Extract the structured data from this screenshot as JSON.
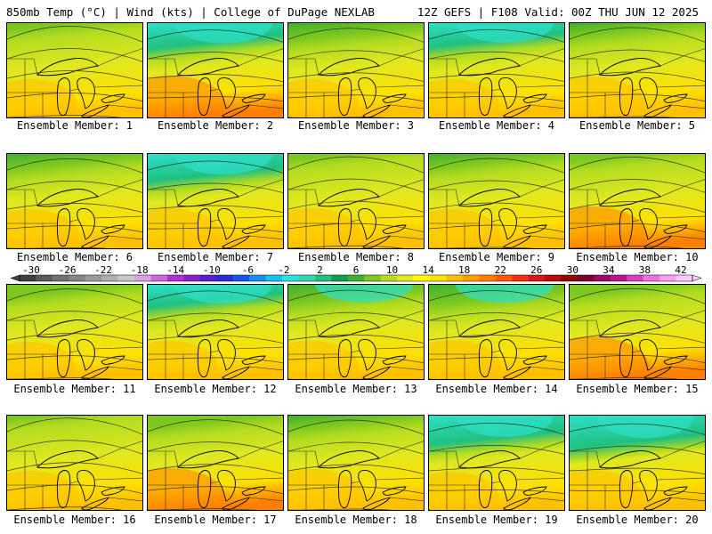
{
  "header": {
    "left": "850mb Temp (°C) | Wind (kts) | College of DuPage NEXLAB",
    "right": "12Z GEFS | F108 Valid: 00Z THU JUN 12 2025"
  },
  "member_label_prefix": "Ensemble Member: ",
  "members": [
    {
      "id": "1",
      "cold": 0.2,
      "warm": 0.35
    },
    {
      "id": "2",
      "cold": 0.75,
      "warm": 0.55
    },
    {
      "id": "3",
      "cold": 0.5,
      "warm": 0.35
    },
    {
      "id": "4",
      "cold": 0.7,
      "warm": 0.35
    },
    {
      "id": "5",
      "cold": 0.4,
      "warm": 0.5
    },
    {
      "id": "6",
      "cold": 0.45,
      "warm": 0.4
    },
    {
      "id": "7",
      "cold": 0.8,
      "warm": 0.45
    },
    {
      "id": "8",
      "cold": 0.15,
      "warm": 0.45
    },
    {
      "id": "9",
      "cold": 0.4,
      "warm": 0.4
    },
    {
      "id": "10",
      "cold": 0.2,
      "warm": 0.55
    },
    {
      "id": "11",
      "cold": 0.35,
      "warm": 0.3
    },
    {
      "id": "12",
      "cold": 0.65,
      "warm": 0.35
    },
    {
      "id": "13",
      "cold": 0.55,
      "warm": 0.35
    },
    {
      "id": "14",
      "cold": 0.6,
      "warm": 0.4
    },
    {
      "id": "15",
      "cold": 0.3,
      "warm": 0.6
    },
    {
      "id": "16",
      "cold": 0.1,
      "warm": 0.4
    },
    {
      "id": "17",
      "cold": 0.35,
      "warm": 0.55
    },
    {
      "id": "18",
      "cold": 0.4,
      "warm": 0.5
    },
    {
      "id": "19",
      "cold": 0.85,
      "warm": 0.35
    },
    {
      "id": "20",
      "cold": 0.95,
      "warm": 0.45
    }
  ],
  "colorbar": {
    "tick_labels": [
      "-30",
      "-26",
      "-22",
      "-18",
      "-14",
      "-10",
      "-6",
      "-2",
      "2",
      "6",
      "10",
      "14",
      "18",
      "22",
      "26",
      "30",
      "34",
      "38",
      "42"
    ],
    "colors": [
      "#404040",
      "#5a5a5a",
      "#707070",
      "#858585",
      "#9a9a9a",
      "#b0b0b0",
      "#c8c8c8",
      "#d9a0e6",
      "#cc66dd",
      "#b030d0",
      "#8a1fcc",
      "#5a1fcc",
      "#2a2ad9",
      "#1a55e6",
      "#1a8cf0",
      "#18c0f0",
      "#2ee0e0",
      "#33d6b0",
      "#20c080",
      "#10a050",
      "#40b030",
      "#7cc820",
      "#b4dc20",
      "#e0e820",
      "#ffff00",
      "#ffe000",
      "#ffc000",
      "#ffa000",
      "#ff8000",
      "#ff5a00",
      "#f03010",
      "#d81818",
      "#b80c0c",
      "#900404",
      "#7a0030",
      "#9a0a60",
      "#bc148c",
      "#dc3cc0",
      "#f070e0",
      "#ff9cf0",
      "#ffc8ff"
    ]
  }
}
